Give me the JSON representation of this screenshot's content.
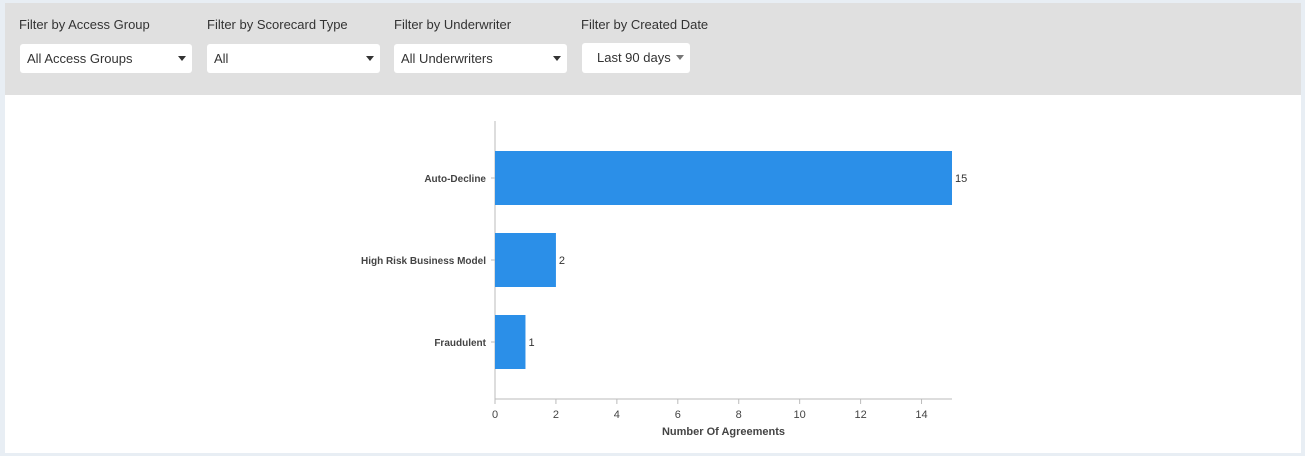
{
  "filters": [
    {
      "label": "Filter by Access Group",
      "value": "All Access Groups"
    },
    {
      "label": "Filter by Scorecard Type",
      "value": "All"
    },
    {
      "label": "Filter by Underwriter",
      "value": "All Underwriters"
    },
    {
      "label": "Filter by Created Date",
      "value": "Last 90 days"
    }
  ],
  "colors": {
    "bar": "#2b8fe8",
    "filter_bar_bg": "#e0e0e0"
  },
  "chart_data": {
    "type": "bar",
    "orientation": "horizontal",
    "categories": [
      "Auto-Decline",
      "High Risk Business Model",
      "Fraudulent"
    ],
    "values": [
      15,
      2,
      1
    ],
    "xlabel": "Number Of Agreements",
    "xlim": [
      0,
      15
    ],
    "xticks": [
      "0",
      "2",
      "4",
      "6",
      "8",
      "10",
      "12",
      "14"
    ],
    "grid": false
  }
}
